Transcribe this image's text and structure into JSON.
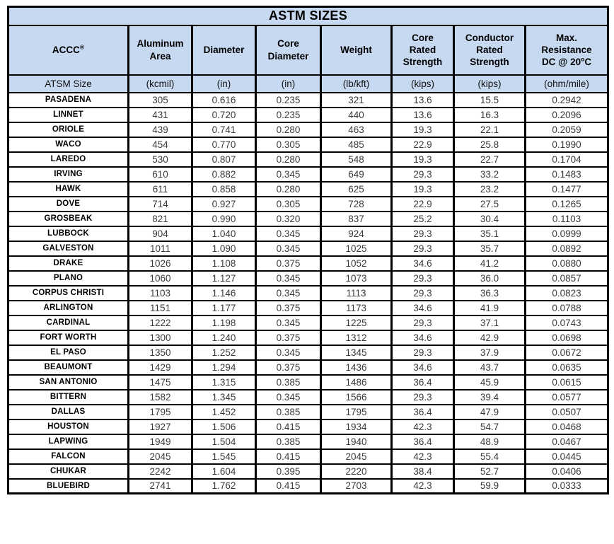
{
  "colors": {
    "header_bg": "#c6d9f1",
    "border": "#000000",
    "value_text": "#3a3a3a"
  },
  "table": {
    "title": "ASTM SIZES",
    "columns": [
      {
        "lines": [
          "ACCC"
        ],
        "sup": "®",
        "unit": "ATSM Size"
      },
      {
        "lines": [
          "Aluminum",
          "Area"
        ],
        "unit": "(kcmil)"
      },
      {
        "lines": [
          "Diameter"
        ],
        "unit": "(in)"
      },
      {
        "lines": [
          "Core",
          "Diameter"
        ],
        "unit": "(in)"
      },
      {
        "lines": [
          "Weight"
        ],
        "unit": "(lb/kft)"
      },
      {
        "lines": [
          "Core",
          "Rated",
          "Strength"
        ],
        "unit": "(kips)"
      },
      {
        "lines": [
          "Conductor",
          "Rated",
          "Strength"
        ],
        "unit": "(kips)"
      },
      {
        "lines": [
          "Max.",
          "Resistance"
        ],
        "degree_line": {
          "pre": "DC @ 20",
          "sup": "o",
          "post": "C"
        },
        "unit": "(ohm/mile)"
      }
    ],
    "rows": [
      {
        "name": "PASADENA",
        "values": [
          "305",
          "0.616",
          "0.235",
          "321",
          "13.6",
          "15.5",
          "0.2942"
        ]
      },
      {
        "name": "LINNET",
        "values": [
          "431",
          "0.720",
          "0.235",
          "440",
          "13.6",
          "16.3",
          "0.2096"
        ]
      },
      {
        "name": "ORIOLE",
        "values": [
          "439",
          "0.741",
          "0.280",
          "463",
          "19.3",
          "22.1",
          "0.2059"
        ]
      },
      {
        "name": "WACO",
        "values": [
          "454",
          "0.770",
          "0.305",
          "485",
          "22.9",
          "25.8",
          "0.1990"
        ]
      },
      {
        "name": "LAREDO",
        "values": [
          "530",
          "0.807",
          "0.280",
          "548",
          "19.3",
          "22.7",
          "0.1704"
        ]
      },
      {
        "name": "IRVING",
        "values": [
          "610",
          "0.882",
          "0.345",
          "649",
          "29.3",
          "33.2",
          "0.1483"
        ]
      },
      {
        "name": "HAWK",
        "values": [
          "611",
          "0.858",
          "0.280",
          "625",
          "19.3",
          "23.2",
          "0.1477"
        ]
      },
      {
        "name": "DOVE",
        "values": [
          "714",
          "0.927",
          "0.305",
          "728",
          "22.9",
          "27.5",
          "0.1265"
        ]
      },
      {
        "name": "GROSBEAK",
        "values": [
          "821",
          "0.990",
          "0.320",
          "837",
          "25.2",
          "30.4",
          "0.1103"
        ]
      },
      {
        "name": "LUBBOCK",
        "values": [
          "904",
          "1.040",
          "0.345",
          "924",
          "29.3",
          "35.1",
          "0.0999"
        ]
      },
      {
        "name": "GALVESTON",
        "values": [
          "1011",
          "1.090",
          "0.345",
          "1025",
          "29.3",
          "35.7",
          "0.0892"
        ]
      },
      {
        "name": "DRAKE",
        "values": [
          "1026",
          "1.108",
          "0.375",
          "1052",
          "34.6",
          "41.2",
          "0.0880"
        ]
      },
      {
        "name": "PLANO",
        "values": [
          "1060",
          "1.127",
          "0.345",
          "1073",
          "29.3",
          "36.0",
          "0.0857"
        ]
      },
      {
        "name": "CORPUS CHRISTI",
        "values": [
          "1103",
          "1.146",
          "0.345",
          "1113",
          "29.3",
          "36.3",
          "0.0823"
        ]
      },
      {
        "name": "ARLINGTON",
        "values": [
          "1151",
          "1.177",
          "0.375",
          "1173",
          "34.6",
          "41.9",
          "0.0788"
        ]
      },
      {
        "name": "CARDINAL",
        "values": [
          "1222",
          "1.198",
          "0.345",
          "1225",
          "29.3",
          "37.1",
          "0.0743"
        ]
      },
      {
        "name": "FORT WORTH",
        "values": [
          "1300",
          "1.240",
          "0.375",
          "1312",
          "34.6",
          "42.9",
          "0.0698"
        ]
      },
      {
        "name": "EL PASO",
        "values": [
          "1350",
          "1.252",
          "0.345",
          "1345",
          "29.3",
          "37.9",
          "0.0672"
        ]
      },
      {
        "name": "BEAUMONT",
        "values": [
          "1429",
          "1.294",
          "0.375",
          "1436",
          "34.6",
          "43.7",
          "0.0635"
        ]
      },
      {
        "name": "SAN ANTONIO",
        "values": [
          "1475",
          "1.315",
          "0.385",
          "1486",
          "36.4",
          "45.9",
          "0.0615"
        ]
      },
      {
        "name": "BITTERN",
        "values": [
          "1582",
          "1.345",
          "0.345",
          "1566",
          "29.3",
          "39.4",
          "0.0577"
        ]
      },
      {
        "name": "DALLAS",
        "values": [
          "1795",
          "1.452",
          "0.385",
          "1795",
          "36.4",
          "47.9",
          "0.0507"
        ]
      },
      {
        "name": "HOUSTON",
        "values": [
          "1927",
          "1.506",
          "0.415",
          "1934",
          "42.3",
          "54.7",
          "0.0468"
        ]
      },
      {
        "name": "LAPWING",
        "values": [
          "1949",
          "1.504",
          "0.385",
          "1940",
          "36.4",
          "48.9",
          "0.0467"
        ]
      },
      {
        "name": "FALCON",
        "values": [
          "2045",
          "1.545",
          "0.415",
          "2045",
          "42.3",
          "55.4",
          "0.0445"
        ]
      },
      {
        "name": "CHUKAR",
        "values": [
          "2242",
          "1.604",
          "0.395",
          "2220",
          "38.4",
          "52.7",
          "0.0406"
        ]
      },
      {
        "name": "BLUEBIRD",
        "values": [
          "2741",
          "1.762",
          "0.415",
          "2703",
          "42.3",
          "59.9",
          "0.0333"
        ]
      }
    ]
  }
}
